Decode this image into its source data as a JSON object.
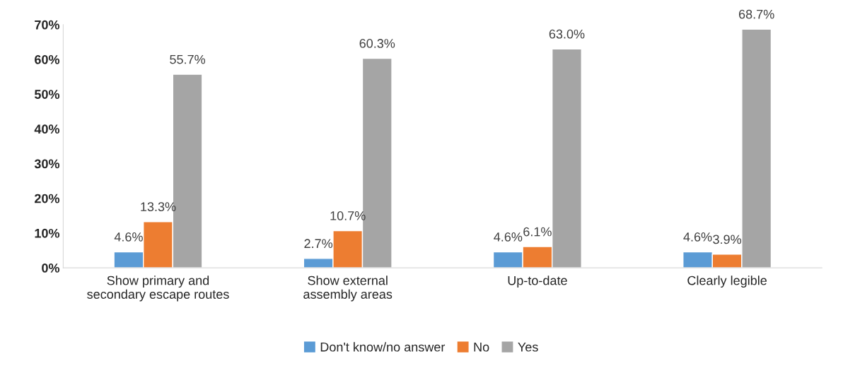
{
  "chart_data": {
    "type": "bar",
    "categories": [
      "Show primary and\nsecondary escape routes",
      "Show external\nassembly areas",
      "Up-to-date",
      "Clearly legible"
    ],
    "series": [
      {
        "name": "Don't know/no answer",
        "color": "#5b9bd5",
        "values": [
          4.6,
          2.7,
          4.6,
          4.6
        ],
        "value_labels": [
          "4.6%",
          "2.7%",
          "4.6%",
          "4.6%"
        ]
      },
      {
        "name": "No",
        "color": "#ed7d31",
        "values": [
          13.3,
          10.7,
          6.1,
          3.9
        ],
        "value_labels": [
          "13.3%",
          "10.7%",
          "6.1%",
          "3.9%"
        ]
      },
      {
        "name": "Yes",
        "color": "#a5a5a5",
        "values": [
          55.7,
          60.3,
          63.0,
          68.7
        ],
        "value_labels": [
          "55.7%",
          "60.3%",
          "63.0%",
          "68.7%"
        ]
      }
    ],
    "ylim": [
      0,
      70
    ],
    "yticks": [
      {
        "value": 0,
        "label": "0%"
      },
      {
        "value": 10,
        "label": "10%"
      },
      {
        "value": 20,
        "label": "20%"
      },
      {
        "value": 30,
        "label": "30%"
      },
      {
        "value": 40,
        "label": "40%"
      },
      {
        "value": 50,
        "label": "50%"
      },
      {
        "value": 60,
        "label": "60%"
      },
      {
        "value": 70,
        "label": "70%"
      }
    ],
    "grid": false,
    "legend": "bottom"
  }
}
